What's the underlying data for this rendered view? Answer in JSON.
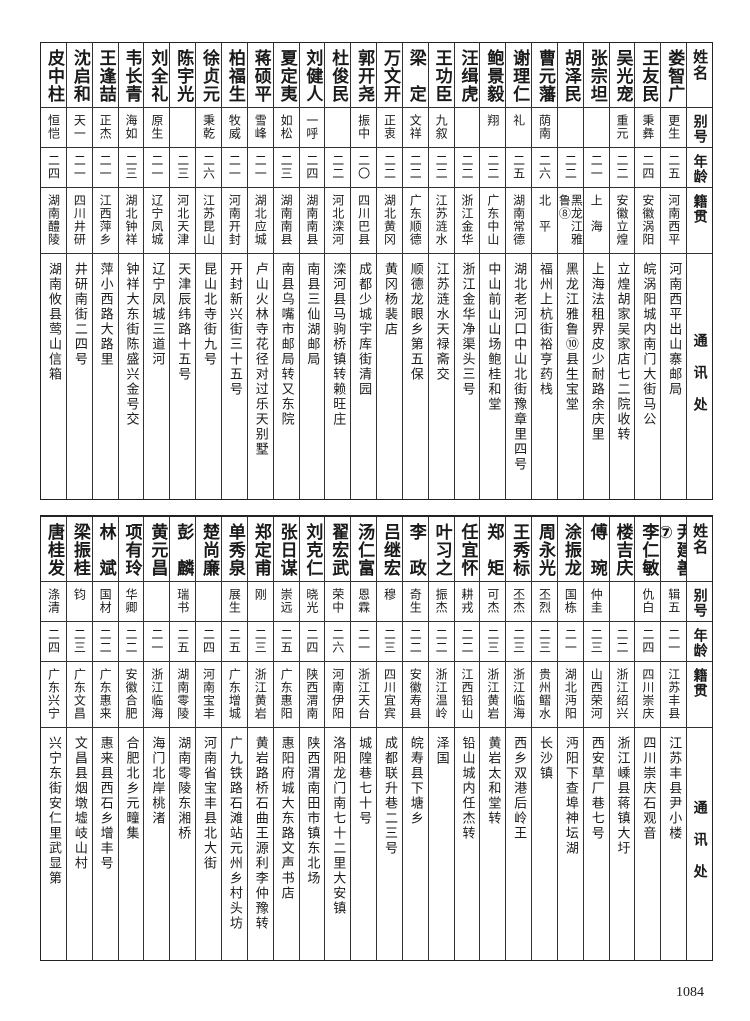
{
  "headers": {
    "name": "姓名",
    "alias": "别号",
    "age": "年龄",
    "native": "籍贯",
    "address": "通讯处"
  },
  "top_rows": [
    {
      "name": "娄智广",
      "alias": "更生",
      "age": "二五",
      "native": "河南西平",
      "address": "河南西平出山寨邮局"
    },
    {
      "name": "王友民",
      "alias": "秉彝",
      "age": "二四",
      "native": "安徽涡阳",
      "address": "皖涡阳城内南门大街马公"
    },
    {
      "name": "吴光宠",
      "alias": "重元",
      "age": "二二",
      "native": "安徽立煌",
      "address": "立煌胡家吴家店七二院收转"
    },
    {
      "name": "张宗坦",
      "alias": "",
      "age": "二一",
      "native": "上　海",
      "address": "上海法租界皮少耐路余庆里"
    },
    {
      "name": "胡泽民",
      "alias": "",
      "age": "二二",
      "native": "黑龙江雅鲁⑧",
      "address": "黑龙江雅鲁⑩县生宝堂"
    },
    {
      "name": "曹元藩",
      "alias": "荫南",
      "age": "二六",
      "native": "北　平",
      "address": "福州上杭街裕亨药栈"
    },
    {
      "name": "谢理仁",
      "alias": "礼",
      "age": "二五",
      "native": "湖南常德",
      "address": "湖北老河口中山北街豫章里四号"
    },
    {
      "name": "鲍景毅",
      "alias": "翔",
      "age": "二二",
      "native": "广东中山",
      "address": "中山前山山场鲍桂和堂"
    },
    {
      "name": "汪缉虎",
      "alias": "",
      "age": "二二",
      "native": "浙江金华",
      "address": "浙江金华净渠头三号"
    },
    {
      "name": "王功臣",
      "alias": "九叙",
      "age": "二二",
      "native": "江苏涟水",
      "address": "江苏涟水天禄斋交"
    },
    {
      "name": "梁　定",
      "alias": "文祥",
      "age": "二二",
      "native": "广东顺德",
      "address": "顺德龙眼乡第五保"
    },
    {
      "name": "万文开",
      "alias": "正衷",
      "age": "二二",
      "native": "湖北黄冈",
      "address": "黄冈杨裴店"
    },
    {
      "name": "郭开尧",
      "alias": "振中",
      "age": "二〇",
      "native": "四川巴县",
      "address": "成都少城宇库街清园"
    },
    {
      "name": "杜俊民",
      "alias": "",
      "age": "二二",
      "native": "河北滦河",
      "address": "滦河县马驹桥镇转赖旺庄"
    },
    {
      "name": "刘健人",
      "alias": "一呼",
      "age": "二四",
      "native": "湖南南县",
      "address": "南县三仙湖邮局"
    },
    {
      "name": "夏定夷",
      "alias": "如松",
      "age": "二三",
      "native": "湖南南县",
      "address": "南县乌嘴市邮局转又东院"
    },
    {
      "name": "蒋硕平",
      "alias": "雪峰",
      "age": "二一",
      "native": "湖北应城",
      "address": "卢山火林寺花径对过乐天别墅"
    },
    {
      "name": "柏福生",
      "alias": "牧威",
      "age": "二一",
      "native": "河南开封",
      "address": "开封新兴街三十五号"
    },
    {
      "name": "徐贞元",
      "alias": "秉乾",
      "age": "二六",
      "native": "江苏昆山",
      "address": "昆山北寺街九号"
    },
    {
      "name": "陈宇光",
      "alias": "",
      "age": "二三",
      "native": "河北天津",
      "address": "天津辰纬路十五号"
    },
    {
      "name": "刘全礼",
      "alias": "原生",
      "age": "二一",
      "native": "辽宁凤城",
      "address": "辽宁凤城三道河"
    },
    {
      "name": "韦长青",
      "alias": "海如",
      "age": "二三",
      "native": "湖北钟祥",
      "address": "钟祥大东街陈盛兴金号交"
    },
    {
      "name": "王逢喆",
      "alias": "正杰",
      "age": "二一",
      "native": "江西萍乡",
      "address": "萍小西路大路里"
    },
    {
      "name": "沈启和",
      "alias": "天一",
      "age": "二一",
      "native": "四川井研",
      "address": "井研南街二四号"
    },
    {
      "name": "皮中柱",
      "alias": "恒恺",
      "age": "二四",
      "native": "湖南醴陵",
      "address": "湖南攸县莺山信箱"
    }
  ],
  "bottom_rows": [
    {
      "name": "尹建善⑦",
      "alias": "辑五",
      "age": "二一",
      "native": "江苏丰县",
      "address": "江苏丰县尹小楼"
    },
    {
      "name": "李仁敏",
      "alias": "仇白",
      "age": "二四",
      "native": "四川崇庆",
      "address": "四川崇庆石观音"
    },
    {
      "name": "楼吉庆",
      "alias": "",
      "age": "二二",
      "native": "浙江绍兴",
      "address": "浙江嵊县蒋镇大圩"
    },
    {
      "name": "傅　琬",
      "alias": "仲圭",
      "age": "二三",
      "native": "山西荣河",
      "address": "西安草厂巷七号"
    },
    {
      "name": "涂振龙",
      "alias": "国栋",
      "age": "二一",
      "native": "湖北沔阳",
      "address": "沔阳下查埠神坛湖"
    },
    {
      "name": "周永光",
      "alias": "丕烈",
      "age": "二三",
      "native": "贵州鳛水",
      "address": "长沙镇"
    },
    {
      "name": "王秀标",
      "alias": "丕杰",
      "age": "二三",
      "native": "浙江临海",
      "address": "西乡双港后岭王"
    },
    {
      "name": "郑　矩",
      "alias": "可杰",
      "age": "二三",
      "native": "浙江黄岩",
      "address": "黄岩太和堂转"
    },
    {
      "name": "任宜怀",
      "alias": "耕戎",
      "age": "二二",
      "native": "江西铅山",
      "address": "铅山城内任杰转"
    },
    {
      "name": "叶习之",
      "alias": "振杰",
      "age": "二二",
      "native": "浙江温岭",
      "address": "泽国"
    },
    {
      "name": "李　政",
      "alias": "奇生",
      "age": "二二",
      "native": "安徽寿县",
      "address": "皖寿县下塘乡"
    },
    {
      "name": "吕继宏",
      "alias": "穆",
      "age": "二三",
      "native": "四川宜宾",
      "address": "成都联升巷二三号"
    },
    {
      "name": "汤仁富",
      "alias": "恩霖",
      "age": "二一",
      "native": "浙江天台",
      "address": "城隍巷七十号"
    },
    {
      "name": "翟宏武",
      "alias": "荣中",
      "age": "二六",
      "native": "河南伊阳",
      "address": "洛阳龙门南七十二里大安镇"
    },
    {
      "name": "刘克仁",
      "alias": "晓光",
      "age": "二四",
      "native": "陕西渭南",
      "address": "陕西渭南田市镇东北场"
    },
    {
      "name": "张日谋",
      "alias": "崇远",
      "age": "二五",
      "native": "广东惠阳",
      "address": "惠阳府城大东路文声书店"
    },
    {
      "name": "郑定甫",
      "alias": "刚",
      "age": "二三",
      "native": "浙江黄岩",
      "address": "黄岩路桥石曲王源利李仲豫转"
    },
    {
      "name": "单秀泉",
      "alias": "展生",
      "age": "二五",
      "native": "广东增城",
      "address": "广九铁路石滩站元州乡村头坊"
    },
    {
      "name": "楚尚廉",
      "alias": "",
      "age": "二四",
      "native": "河南宝丰",
      "address": "河南省宝丰县北大街"
    },
    {
      "name": "彭　麟",
      "alias": "瑞书",
      "age": "二五",
      "native": "湖南零陵",
      "address": "湖南零陵东湘桥"
    },
    {
      "name": "黄元昌",
      "alias": "",
      "age": "二一",
      "native": "浙江临海",
      "address": "海门北岸桃渚"
    },
    {
      "name": "项有玲",
      "alias": "华卿",
      "age": "二二",
      "native": "安徽合肥",
      "address": "合肥北乡元疃集"
    },
    {
      "name": "林　斌",
      "alias": "国材",
      "age": "二二",
      "native": "广东惠来",
      "address": "惠来县西石乡增丰号"
    },
    {
      "name": "梁振桂",
      "alias": "钧",
      "age": "二三",
      "native": "广东文昌",
      "address": "文昌县烟墩墟岐山村"
    },
    {
      "name": "唐桂发",
      "alias": "涤清",
      "age": "二四",
      "native": "广东兴宁",
      "address": "兴宁东街安仁里武显第"
    }
  ],
  "page_number": "1084"
}
